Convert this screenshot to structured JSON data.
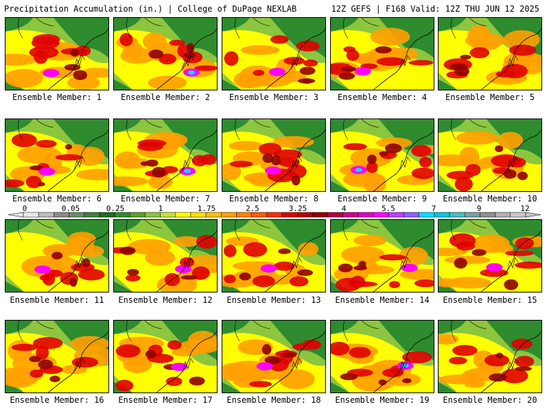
{
  "header": {
    "title_left": "Precipitation Accumulation (in.) | College of DuPage NEXLAB",
    "title_right": "12Z GEFS | F168 Valid: 12Z THU JUN 12 2025"
  },
  "members": [
    {
      "label": "Ensemble Member: 1",
      "heavy_core": "magenta"
    },
    {
      "label": "Ensemble Member: 2",
      "heavy_core": "cyan"
    },
    {
      "label": "Ensemble Member: 3",
      "heavy_core": "magenta"
    },
    {
      "label": "Ensemble Member: 4",
      "heavy_core": "magenta"
    },
    {
      "label": "Ensemble Member: 5",
      "heavy_core": "red"
    },
    {
      "label": "Ensemble Member: 6",
      "heavy_core": "magenta"
    },
    {
      "label": "Ensemble Member: 7",
      "heavy_core": "cyan"
    },
    {
      "label": "Ensemble Member: 8",
      "heavy_core": "magenta"
    },
    {
      "label": "Ensemble Member: 9",
      "heavy_core": "cyan"
    },
    {
      "label": "Ensemble Member: 10",
      "heavy_core": "red"
    },
    {
      "label": "Ensemble Member: 11",
      "heavy_core": "magenta"
    },
    {
      "label": "Ensemble Member: 12",
      "heavy_core": "magenta"
    },
    {
      "label": "Ensemble Member: 13",
      "heavy_core": "magenta"
    },
    {
      "label": "Ensemble Member: 14",
      "heavy_core": "magenta"
    },
    {
      "label": "Ensemble Member: 15",
      "heavy_core": "magenta"
    },
    {
      "label": "Ensemble Member: 16",
      "heavy_core": "red"
    },
    {
      "label": "Ensemble Member: 17",
      "heavy_core": "magenta"
    },
    {
      "label": "Ensemble Member: 18",
      "heavy_core": "magenta"
    },
    {
      "label": "Ensemble Member: 19",
      "heavy_core": "cyan"
    },
    {
      "label": "Ensemble Member: 20",
      "heavy_core": "red"
    }
  ],
  "colorbar": {
    "tick_labels": [
      "0",
      "0.05",
      "0.25",
      "1",
      "1.75",
      "2.5",
      "3.25",
      "4",
      "5.5",
      "7",
      "9",
      "12"
    ],
    "colors": [
      "#e8e8e8",
      "#bdbdbd",
      "#8c8c8c",
      "#6b8e6b",
      "#3f7f3f",
      "#1e6e1e",
      "#2e8b2e",
      "#5aa02a",
      "#8cc63f",
      "#c8e03a",
      "#ffff00",
      "#ffe000",
      "#ffc000",
      "#ffa000",
      "#ff8000",
      "#ff5a00",
      "#ff2a00",
      "#e00000",
      "#b40000",
      "#900000",
      "#b00040",
      "#d0008a",
      "#e000c0",
      "#ff00ff",
      "#c040ff",
      "#9060ff",
      "#00e0ff",
      "#00c8e0",
      "#40c0c0",
      "#80a0a0",
      "#909090",
      "#b0b0b0",
      "#c8c8c8"
    ]
  },
  "palette": {
    "green": "#2e8b2e",
    "dark_green": "#1e6e1e",
    "light_green": "#8cc63f",
    "yellow": "#ffff00",
    "orange": "#ffa000",
    "red": "#e00000",
    "dark_red": "#900000",
    "magenta": "#ff00ff",
    "cyan": "#00e0ff",
    "outline": "#000000"
  }
}
